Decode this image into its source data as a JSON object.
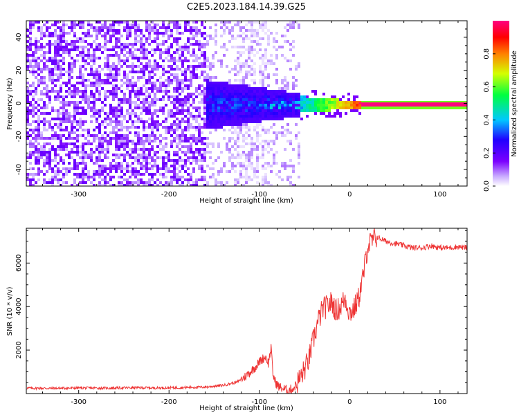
{
  "title": "C2E5.2023.184.14.39.G25",
  "chart_data": [
    {
      "type": "heatmap",
      "xlabel": "Height of straight line (km)",
      "ylabel": "Frequency (Hz)",
      "xlim": [
        -358,
        130
      ],
      "ylim": [
        -50,
        50
      ],
      "xticks": [
        -300,
        -200,
        -100,
        0,
        100
      ],
      "yticks": [
        -40,
        -20,
        0,
        20,
        40
      ],
      "grid": false,
      "colorbar": {
        "label": "Normalized spectral amplitude",
        "range": [
          0,
          1
        ],
        "ticks": [
          0.0,
          0.2,
          0.4,
          0.6,
          0.8
        ],
        "colors": [
          "#ffffff",
          "#c8aaff",
          "#7b00ff",
          "#2000ff",
          "#00c8ff",
          "#00ff40",
          "#d4ff00",
          "#ff8000",
          "#ff0000",
          "#ff0080"
        ]
      },
      "features": [
        {
          "x_range": [
            -358,
            -170
          ],
          "freq_range": [
            -50,
            50
          ],
          "amplitude": 0.1,
          "description_free": false
        },
        {
          "x_range": [
            -170,
            -60
          ],
          "freq_center": 0,
          "freq_halfwidth": [
            15,
            5
          ],
          "amplitude": 0.3
        },
        {
          "x_range": [
            -60,
            10
          ],
          "freq_center": 0,
          "freq_halfwidth": [
            5,
            2
          ],
          "amplitude": 0.8
        },
        {
          "x_range": [
            10,
            130
          ],
          "freq_center": 0,
          "freq_halfwidth": [
            1,
            1
          ],
          "amplitude": 1.0
        }
      ]
    },
    {
      "type": "line",
      "xlabel": "Height of straight line (km)",
      "ylabel": "SNR (10 * v/v)",
      "xlim": [
        -358,
        130
      ],
      "ylim": [
        0,
        7600
      ],
      "xticks": [
        -300,
        -200,
        -100,
        0,
        100
      ],
      "yticks": [
        2000,
        4000,
        6000
      ],
      "grid": false,
      "series_color": "#ee3333",
      "series": [
        {
          "x": [
            -358,
            -330,
            -300,
            -270,
            -240,
            -210,
            -180,
            -160,
            -140,
            -125,
            -115,
            -105,
            -98,
            -93,
            -90,
            -87,
            -85,
            -82,
            -78,
            -72,
            -68,
            -62,
            -55,
            -50,
            -45,
            -40,
            -35,
            -30,
            -25,
            -20,
            -15,
            -10,
            -5,
            0,
            5,
            10,
            15,
            20,
            25,
            30,
            35,
            40,
            50,
            60,
            70,
            80,
            90,
            100,
            110,
            120,
            130
          ],
          "y": [
            250,
            240,
            260,
            250,
            270,
            260,
            280,
            300,
            380,
            520,
            800,
            1200,
            1550,
            1700,
            1400,
            2100,
            900,
            500,
            300,
            200,
            150,
            250,
            700,
            1100,
            1600,
            2500,
            3300,
            3900,
            4000,
            4200,
            3800,
            4000,
            4400,
            3700,
            3900,
            4400,
            5400,
            6800,
            7000,
            7200,
            7100,
            7000,
            6900,
            6800,
            6700,
            6700,
            6800,
            6700,
            6700,
            6750,
            6700
          ]
        }
      ]
    }
  ]
}
